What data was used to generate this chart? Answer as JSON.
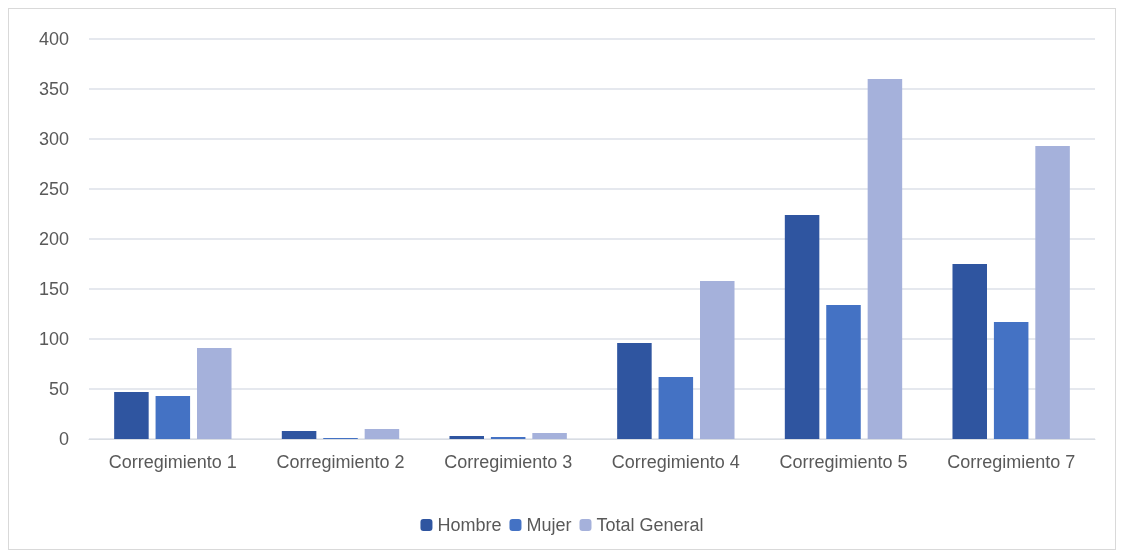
{
  "chart_data": {
    "type": "bar",
    "categories": [
      "Corregimiento 1",
      "Corregimiento 2",
      "Corregimiento 3",
      "Corregimiento 4",
      "Corregimiento 5",
      "Corregimiento 7"
    ],
    "series": [
      {
        "name": "Hombre",
        "color": "#2f55a0",
        "values": [
          47,
          8,
          3,
          96,
          224,
          175
        ]
      },
      {
        "name": "Mujer",
        "color": "#4472c4",
        "values": [
          43,
          1,
          2,
          62,
          134,
          117
        ]
      },
      {
        "name": "Total General",
        "color": "#a5b1db",
        "values": [
          91,
          10,
          6,
          158,
          360,
          293
        ]
      }
    ],
    "ylim": [
      0,
      400
    ],
    "yticks": [
      0,
      50,
      100,
      150,
      200,
      250,
      300,
      350,
      400
    ],
    "grid": "y",
    "legend": "bottom"
  }
}
